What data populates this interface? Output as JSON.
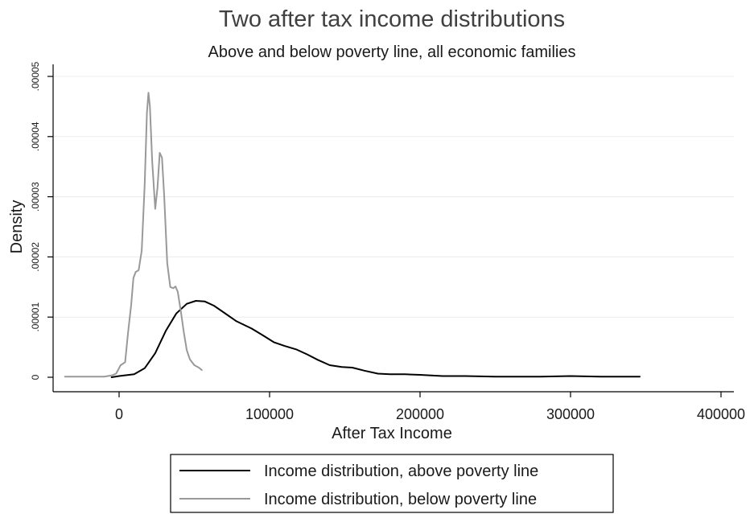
{
  "chart_data": {
    "type": "line",
    "title": "Two after tax income distributions",
    "subtitle": "Above and below poverty line, all economic families",
    "xlabel": "After Tax Income",
    "ylabel": "Density",
    "xlim": [
      -45000,
      410000
    ],
    "ylim": [
      0,
      5e-05
    ],
    "xticks": [
      0,
      100000,
      200000,
      300000,
      400000
    ],
    "xtick_labels": [
      "0",
      "100000",
      "200000",
      "300000",
      "400000"
    ],
    "yticks": [
      0,
      1e-05,
      2e-05,
      3e-05,
      4e-05,
      5e-05
    ],
    "ytick_labels": [
      "0",
      ".00001",
      ".00002",
      ".00003",
      ".00004",
      ".00005"
    ],
    "grid": true,
    "legend_position": "bottom",
    "series": [
      {
        "name": "Income distribution, above poverty line",
        "color": "#000000",
        "x": [
          -5000,
          0,
          10000,
          17000,
          24000,
          31000,
          38000,
          45000,
          51000,
          57000,
          63000,
          70000,
          78000,
          88000,
          96000,
          103000,
          110000,
          118000,
          125000,
          132000,
          140000,
          148000,
          155000,
          163000,
          172000,
          180000,
          190000,
          200000,
          215000,
          230000,
          250000,
          270000,
          280000,
          300000,
          320000,
          346000
        ],
        "y": [
          0,
          2e-07,
          5e-07,
          1.5e-06,
          4e-06,
          7.7e-06,
          1.06e-05,
          1.22e-05,
          1.27e-05,
          1.26e-05,
          1.19e-05,
          1.07e-05,
          9.3e-06,
          8.1e-06,
          6.9e-06,
          5.8e-06,
          5.2e-06,
          4.6e-06,
          3.8e-06,
          2.9e-06,
          2e-06,
          1.7e-06,
          1.6e-06,
          1.1e-06,
          6e-07,
          5e-07,
          5e-07,
          4e-07,
          2e-07,
          2e-07,
          1e-07,
          1e-07,
          1e-07,
          2e-07,
          1e-07,
          1e-07
        ]
      },
      {
        "name": "Income distribution, below poverty line",
        "color": "#999999",
        "x": [
          -36000,
          -25000,
          -10000,
          -5000,
          -2000,
          1000,
          4000,
          6000,
          8000,
          9500,
          11000,
          13000,
          15000,
          17000,
          18500,
          19500,
          20500,
          22000,
          24000,
          25500,
          27000,
          28500,
          30000,
          32000,
          34000,
          36000,
          37500,
          39000,
          41000,
          43000,
          45000,
          47000,
          50000,
          53000,
          55000
        ],
        "y": [
          1e-07,
          1e-07,
          1e-07,
          3e-07,
          6e-07,
          2e-06,
          2.5e-06,
          7.5e-06,
          1.2e-05,
          1.65e-05,
          1.75e-05,
          1.78e-05,
          2.1e-05,
          3.2e-05,
          4.4e-05,
          4.73e-05,
          4.5e-05,
          3.6e-05,
          2.8e-05,
          3.15e-05,
          3.73e-05,
          3.65e-05,
          3e-05,
          1.9e-05,
          1.5e-05,
          1.48e-05,
          1.51e-05,
          1.42e-05,
          1.1e-05,
          7.5e-06,
          4.5e-06,
          3e-06,
          2e-06,
          1.6e-06,
          1.2e-06
        ]
      }
    ]
  }
}
